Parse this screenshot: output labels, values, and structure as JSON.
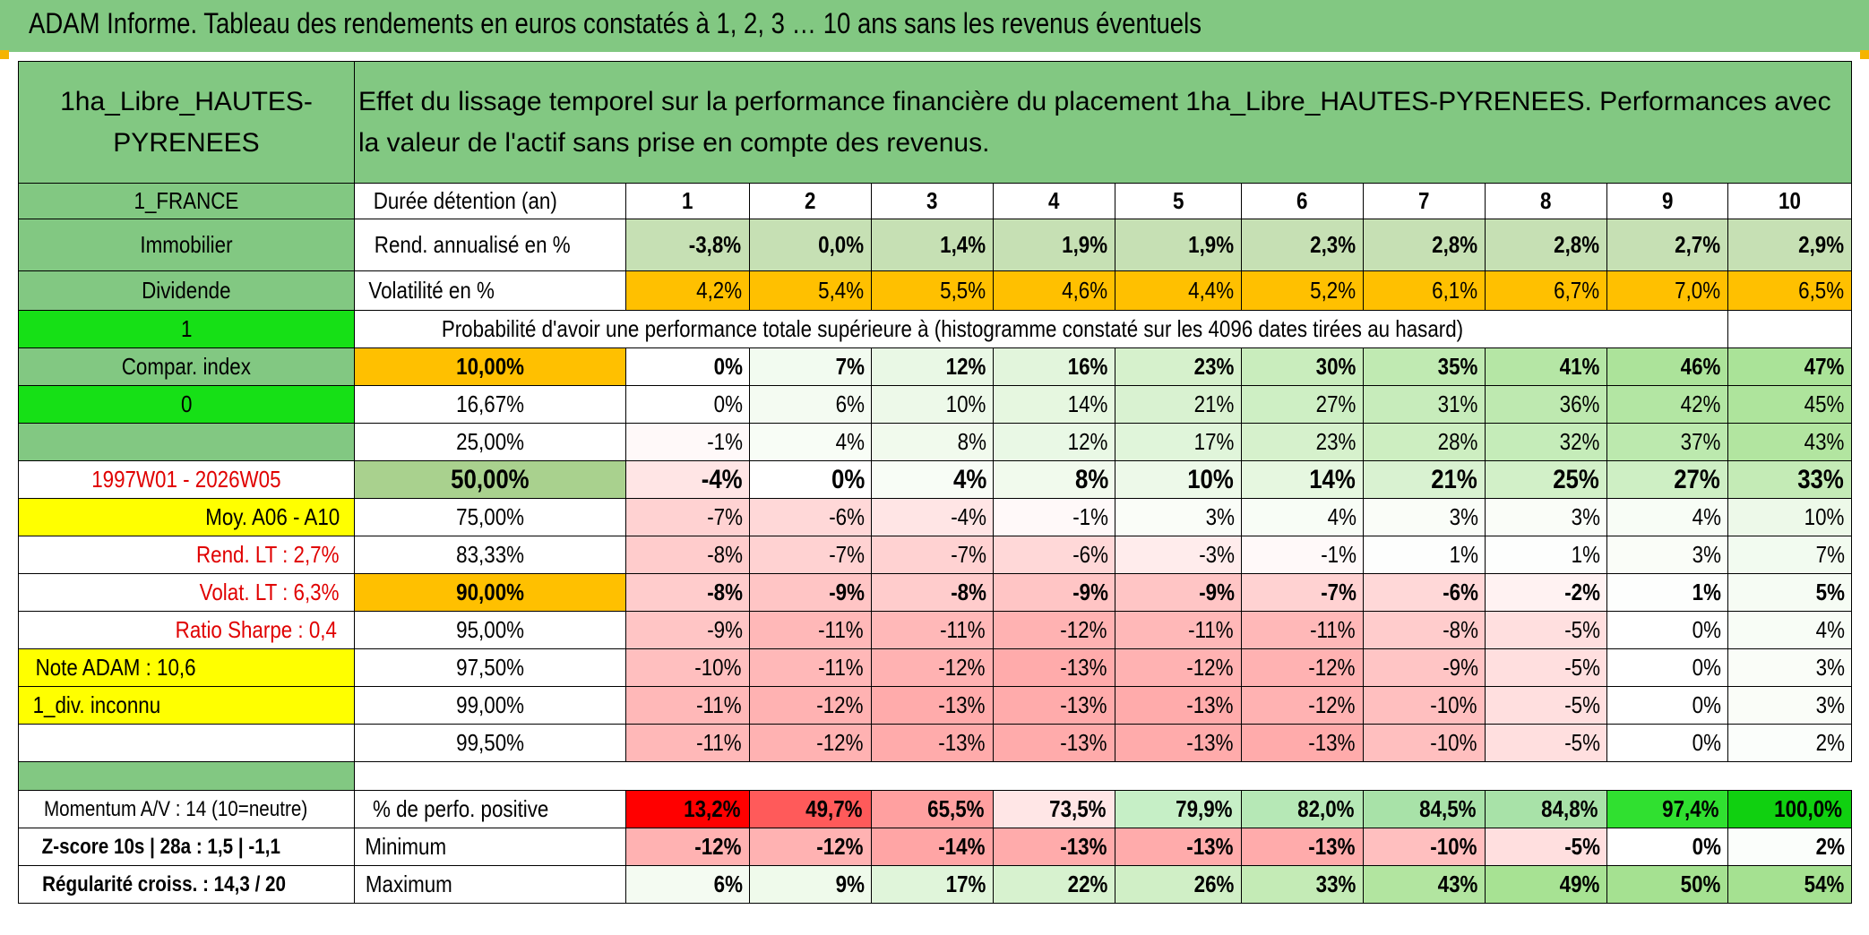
{
  "title": "ADAM Informe. Tableau des rendements en euros constatés à 1, 2, 3 … 10 ans sans les revenus éventuels",
  "colors": {
    "green": "#82c882",
    "lime": "#16e016",
    "yellow": "#ffff00",
    "orange": "#ffc000",
    "red_text": "#e00000"
  },
  "header": {
    "asset_name": "1ha_Libre_HAUTES-PYRENEES",
    "description": "Effet du lissage temporel sur la performance financière du placement 1ha_Libre_HAUTES-PYRENEES. Performances avec la valeur de l'actif sans prise en compte des revenus."
  },
  "sidebar": {
    "country": "1_FRANCE",
    "category": "Immobilier",
    "dividend": "Dividende",
    "flag1": "1",
    "compar_index": "Compar. index",
    "flag0": "0",
    "period": "1997W01 - 2026W05",
    "moy": "Moy. A06 - A10",
    "rend_lt": "Rend. LT :   2,7%",
    "volat_lt": "Volat. LT :   6,3%",
    "sharpe": "Ratio Sharpe :   0,4",
    "note": "Note ADAM : 10,6",
    "div": "1_div. inconnu",
    "momentum": "Momentum A/V : 14 (10=neutre)",
    "zscore": "Z-score 10s | 28a : 1,5 | -1,1",
    "regularite": "Régularité croiss. : 14,3 / 20"
  },
  "table": {
    "duration_label": "Durée détention (an)",
    "years": [
      "1",
      "2",
      "3",
      "4",
      "5",
      "6",
      "7",
      "8",
      "9",
      "10"
    ],
    "rend_label": "Rend. annualisé en %",
    "rend": [
      "-3,8%",
      "0,0%",
      "1,4%",
      "1,9%",
      "1,9%",
      "2,3%",
      "2,8%",
      "2,8%",
      "2,7%",
      "2,9%"
    ],
    "vol_label": "Volatilité en %",
    "vol": [
      "4,2%",
      "5,4%",
      "5,5%",
      "4,6%",
      "4,4%",
      "5,2%",
      "6,1%",
      "6,7%",
      "7,0%",
      "6,5%"
    ],
    "prob_label": "Probabilité d'avoir une performance totale supérieure à (histogramme constaté sur les 4096 dates tirées au hasard)",
    "quantiles": [
      {
        "label": "10,00%",
        "values": [
          "0%",
          "7%",
          "12%",
          "16%",
          "23%",
          "30%",
          "35%",
          "41%",
          "46%",
          "47%"
        ]
      },
      {
        "label": "16,67%",
        "values": [
          "0%",
          "6%",
          "10%",
          "14%",
          "21%",
          "27%",
          "31%",
          "36%",
          "42%",
          "45%"
        ]
      },
      {
        "label": "25,00%",
        "values": [
          "-1%",
          "4%",
          "8%",
          "12%",
          "17%",
          "23%",
          "28%",
          "32%",
          "37%",
          "43%"
        ]
      },
      {
        "label": "50,00%",
        "values": [
          "-4%",
          "0%",
          "4%",
          "8%",
          "10%",
          "14%",
          "21%",
          "25%",
          "27%",
          "33%"
        ]
      },
      {
        "label": "75,00%",
        "values": [
          "-7%",
          "-6%",
          "-4%",
          "-1%",
          "3%",
          "4%",
          "3%",
          "3%",
          "4%",
          "10%"
        ]
      },
      {
        "label": "83,33%",
        "values": [
          "-8%",
          "-7%",
          "-7%",
          "-6%",
          "-3%",
          "-1%",
          "1%",
          "1%",
          "3%",
          "7%"
        ]
      },
      {
        "label": "90,00%",
        "values": [
          "-8%",
          "-9%",
          "-8%",
          "-9%",
          "-9%",
          "-7%",
          "-6%",
          "-2%",
          "1%",
          "5%"
        ]
      },
      {
        "label": "95,00%",
        "values": [
          "-9%",
          "-11%",
          "-11%",
          "-12%",
          "-11%",
          "-11%",
          "-8%",
          "-5%",
          "0%",
          "4%"
        ]
      },
      {
        "label": "97,50%",
        "values": [
          "-10%",
          "-11%",
          "-12%",
          "-13%",
          "-12%",
          "-12%",
          "-9%",
          "-5%",
          "0%",
          "3%"
        ]
      },
      {
        "label": "99,00%",
        "values": [
          "-11%",
          "-12%",
          "-13%",
          "-13%",
          "-13%",
          "-12%",
          "-10%",
          "-5%",
          "0%",
          "3%"
        ]
      },
      {
        "label": "99,50%",
        "values": [
          "-11%",
          "-12%",
          "-13%",
          "-13%",
          "-13%",
          "-13%",
          "-10%",
          "-5%",
          "0%",
          "2%"
        ]
      }
    ],
    "pos_label": "% de perfo. positive",
    "pos": [
      "13,2%",
      "49,7%",
      "65,5%",
      "73,5%",
      "79,9%",
      "82,0%",
      "84,5%",
      "84,8%",
      "97,4%",
      "100,0%"
    ],
    "min_label": "Minimum",
    "min": [
      "-12%",
      "-12%",
      "-14%",
      "-13%",
      "-13%",
      "-13%",
      "-10%",
      "-5%",
      "0%",
      "2%"
    ],
    "max_label": "Maximum",
    "max": [
      "6%",
      "9%",
      "17%",
      "22%",
      "26%",
      "33%",
      "43%",
      "49%",
      "50%",
      "54%"
    ]
  }
}
